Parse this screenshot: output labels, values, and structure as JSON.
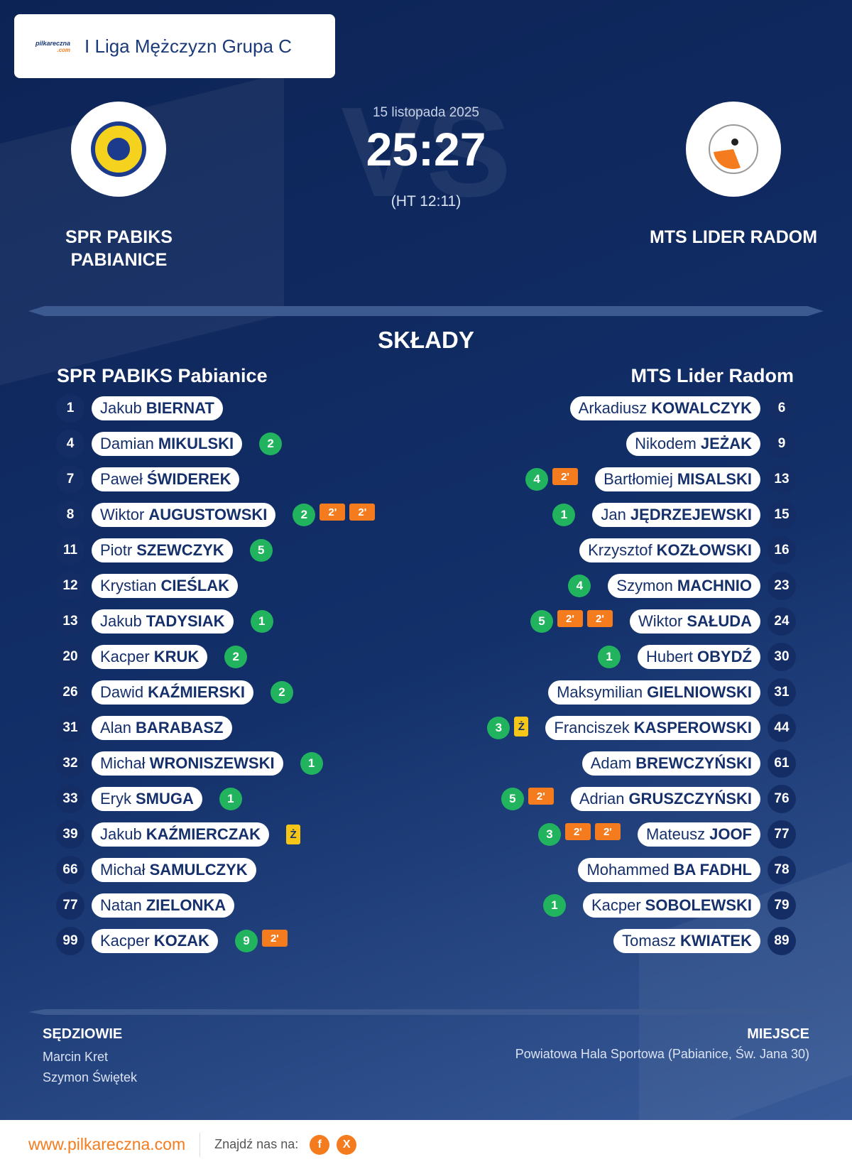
{
  "header": {
    "brand": "pilkareczna",
    "brand_suffix": ".com",
    "league": "I Liga Mężczyzn Grupa C"
  },
  "match": {
    "date": "15 listopada 2025",
    "score": "25:27",
    "halftime": "(HT 12:11)",
    "watermark": "VS",
    "home": "SPR PABIKS PABIANICE",
    "away": "MTS LIDER RADOM"
  },
  "lineups": {
    "title": "SKŁADY",
    "home": {
      "team": "SPR PABIKS Pabianice",
      "players": [
        {
          "number": 1,
          "first": "Jakub",
          "last": "BIERNAT",
          "goals": null,
          "cards": []
        },
        {
          "number": 4,
          "first": "Damian",
          "last": "MIKULSKI",
          "goals": 2,
          "cards": []
        },
        {
          "number": 7,
          "first": "Paweł",
          "last": "ŚWIDEREK",
          "goals": null,
          "cards": []
        },
        {
          "number": 8,
          "first": "Wiktor",
          "last": "AUGUSTOWSKI",
          "goals": 2,
          "cards": [
            "2'",
            "2'"
          ]
        },
        {
          "number": 11,
          "first": "Piotr",
          "last": "SZEWCZYK",
          "goals": 5,
          "cards": []
        },
        {
          "number": 12,
          "first": "Krystian",
          "last": "CIEŚLAK",
          "goals": null,
          "cards": []
        },
        {
          "number": 13,
          "first": "Jakub",
          "last": "TADYSIAK",
          "goals": 1,
          "cards": []
        },
        {
          "number": 20,
          "first": "Kacper",
          "last": "KRUK",
          "goals": 2,
          "cards": []
        },
        {
          "number": 26,
          "first": "Dawid",
          "last": "KAŹMIERSKI",
          "goals": 2,
          "cards": []
        },
        {
          "number": 31,
          "first": "Alan",
          "last": "BARABASZ",
          "goals": null,
          "cards": []
        },
        {
          "number": 32,
          "first": "Michał",
          "last": "WRONISZEWSKI",
          "goals": 1,
          "cards": []
        },
        {
          "number": 33,
          "first": "Eryk",
          "last": "SMUGA",
          "goals": 1,
          "cards": []
        },
        {
          "number": 39,
          "first": "Jakub",
          "last": "KAŹMIERCZAK",
          "goals": null,
          "cards": [
            "Ż"
          ]
        },
        {
          "number": 66,
          "first": "Michał",
          "last": "SAMULCZYK",
          "goals": null,
          "cards": []
        },
        {
          "number": 77,
          "first": "Natan",
          "last": "ZIELONKA",
          "goals": null,
          "cards": []
        },
        {
          "number": 99,
          "first": "Kacper",
          "last": "KOZAK",
          "goals": 9,
          "cards": [
            "2'"
          ]
        }
      ]
    },
    "away": {
      "team": "MTS Lider Radom",
      "players": [
        {
          "number": 6,
          "first": "Arkadiusz",
          "last": "KOWALCZYK",
          "goals": null,
          "cards": []
        },
        {
          "number": 9,
          "first": "Nikodem",
          "last": "JEŻAK",
          "goals": null,
          "cards": []
        },
        {
          "number": 13,
          "first": "Bartłomiej",
          "last": "MISALSKI",
          "goals": 4,
          "cards": [
            "2'"
          ]
        },
        {
          "number": 15,
          "first": "Jan",
          "last": "JĘDRZEJEWSKI",
          "goals": 1,
          "cards": []
        },
        {
          "number": 16,
          "first": "Krzysztof",
          "last": "KOZŁOWSKI",
          "goals": null,
          "cards": []
        },
        {
          "number": 23,
          "first": "Szymon",
          "last": "MACHNIO",
          "goals": 4,
          "cards": []
        },
        {
          "number": 24,
          "first": "Wiktor",
          "last": "SAŁUDA",
          "goals": 5,
          "cards": [
            "2'",
            "2'"
          ]
        },
        {
          "number": 30,
          "first": "Hubert",
          "last": "OBYDŹ",
          "goals": 1,
          "cards": []
        },
        {
          "number": 31,
          "first": "Maksymilian",
          "last": "GIELNIOWSKI",
          "goals": null,
          "cards": []
        },
        {
          "number": 44,
          "first": "Franciszek",
          "last": "KASPEROWSKI",
          "goals": 3,
          "cards": [
            "Ż"
          ]
        },
        {
          "number": 61,
          "first": "Adam",
          "last": "BREWCZYŃSKI",
          "goals": null,
          "cards": []
        },
        {
          "number": 76,
          "first": "Adrian",
          "last": "GRUSZCZYŃSKI",
          "goals": 5,
          "cards": [
            "2'"
          ]
        },
        {
          "number": 77,
          "first": "Mateusz",
          "last": "JOOF",
          "goals": 3,
          "cards": [
            "2'",
            "2'"
          ]
        },
        {
          "number": 78,
          "first": "Mohammed",
          "last": "BA FADHL",
          "goals": null,
          "cards": []
        },
        {
          "number": 79,
          "first": "Kacper",
          "last": "SOBOLEWSKI",
          "goals": 1,
          "cards": []
        },
        {
          "number": 89,
          "first": "Tomasz",
          "last": "KWIATEK",
          "goals": null,
          "cards": []
        }
      ]
    }
  },
  "officials": {
    "title": "SĘDZIOWIE",
    "names": [
      "Marcin Kret",
      "Szymon Świętek"
    ]
  },
  "venue": {
    "title": "MIEJSCE",
    "name": "Powiatowa Hala Sportowa (Pabianice, Św. Jana 30)"
  },
  "footer": {
    "site": "www.pilkareczna.com",
    "find_us": "Znajdź nas na:",
    "facebook": "f",
    "x": "X"
  }
}
